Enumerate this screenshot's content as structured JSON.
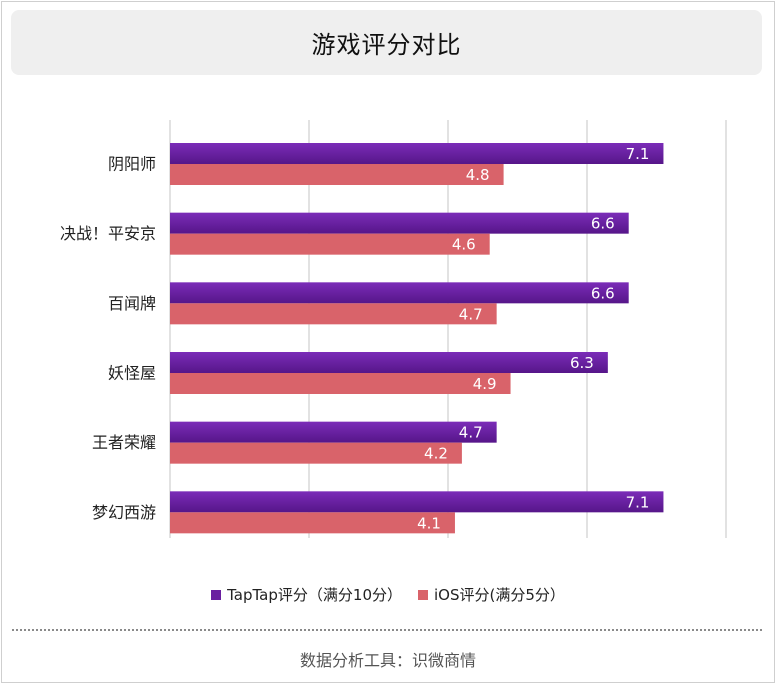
{
  "chart_data": {
    "type": "bar",
    "orientation": "horizontal",
    "title": "游戏评分对比",
    "categories": [
      "阴阳师",
      "决战！平安京",
      "百闻牌",
      "妖怪屋",
      "王者荣耀",
      "梦幻西游"
    ],
    "series": [
      {
        "name": "TapTap评分（满分10分）",
        "color": "#6a1fa0",
        "values": [
          7.1,
          6.6,
          6.6,
          6.3,
          4.7,
          7.1
        ]
      },
      {
        "name": "iOS评分(满分5分）",
        "color": "#d9636a",
        "values": [
          4.8,
          4.6,
          4.7,
          4.9,
          4.2,
          4.1
        ]
      }
    ],
    "xlim": [
      0,
      8
    ],
    "grid": true,
    "data_labels": true,
    "legend_position": "bottom"
  },
  "footer": {
    "text": "数据分析工具：识微商情"
  }
}
